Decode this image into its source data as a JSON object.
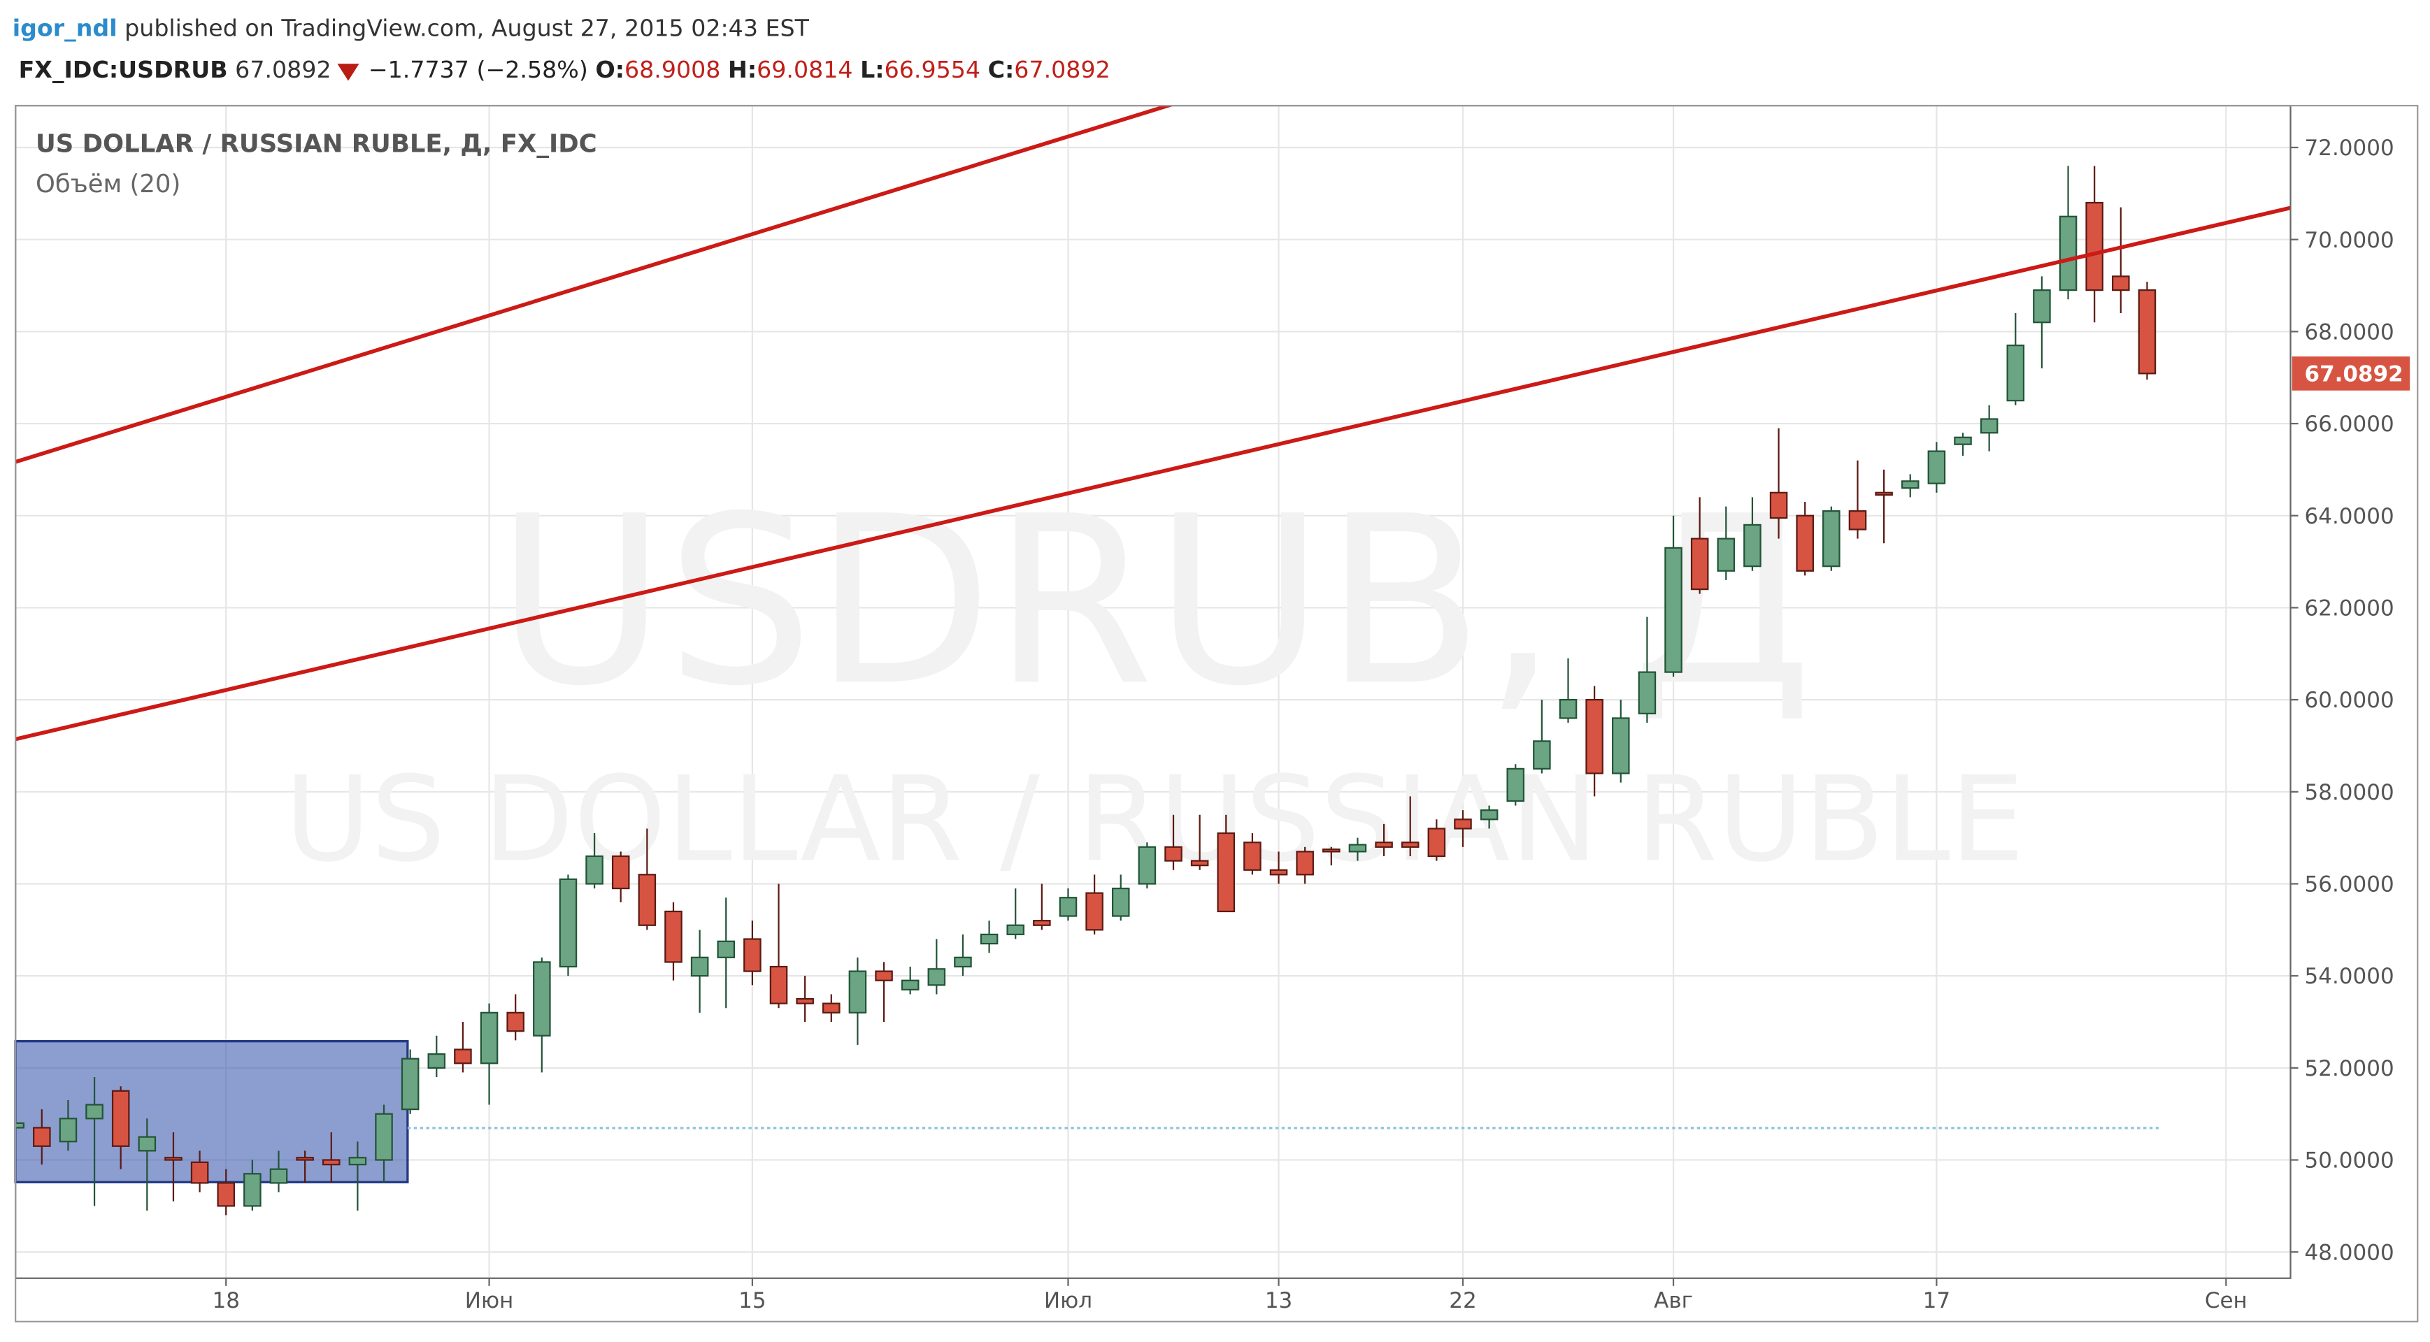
{
  "header": {
    "author": "igor_ndl",
    "published": "published on TradingView.com, August 27, 2015 02:43 EST",
    "symbol": "FX_IDC:USDRUB",
    "last": "67.0892",
    "change": "−1.7737 (−2.58%)",
    "ohlc": [
      {
        "label": "O:",
        "value": "68.9008"
      },
      {
        "label": "H:",
        "value": "69.0814"
      },
      {
        "label": "L:",
        "value": "66.9554"
      },
      {
        "label": "C:",
        "value": "67.0892"
      }
    ]
  },
  "chart_data": {
    "type": "candlestick",
    "title": "US DOLLAR / RUSSIAN RUBLE, Д, FX_IDC",
    "subtitle": "Объём (20)",
    "watermark": [
      "USDRUB, Д",
      "US DOLLAR / RUSSIAN RUBLE"
    ],
    "up_color": "#6ba583",
    "down_color": "#d75442",
    "grid": true,
    "xlim": [
      0,
      86.45
    ],
    "ylim": [
      47.43,
      72.91
    ],
    "xticks": [
      {
        "value": 8,
        "label": "18"
      },
      {
        "value": 18,
        "label": "Июн"
      },
      {
        "value": 28,
        "label": "15"
      },
      {
        "value": 40,
        "label": "Июл"
      },
      {
        "value": 48,
        "label": "13"
      },
      {
        "value": 55,
        "label": "22"
      },
      {
        "value": 63,
        "label": "Авг"
      },
      {
        "value": 73,
        "label": "17"
      },
      {
        "value": 84,
        "label": "Сен"
      }
    ],
    "yticks": [
      {
        "value": 48,
        "label": "48.0000"
      },
      {
        "value": 50,
        "label": "50.0000"
      },
      {
        "value": 52,
        "label": "52.0000"
      },
      {
        "value": 54,
        "label": "54.0000"
      },
      {
        "value": 56,
        "label": "56.0000"
      },
      {
        "value": 58,
        "label": "58.0000"
      },
      {
        "value": 60,
        "label": "60.0000"
      },
      {
        "value": 62,
        "label": "62.0000"
      },
      {
        "value": 64,
        "label": "64.0000"
      },
      {
        "value": 66,
        "label": "66.0000"
      },
      {
        "value": 68,
        "label": "68.0000"
      },
      {
        "value": 70,
        "label": "70.0000"
      },
      {
        "value": 72,
        "label": "72.0000"
      }
    ],
    "open": [
      50.7,
      50.7,
      50.4,
      50.9,
      51.5,
      50.2,
      50.05,
      49.95,
      49.5,
      49.0,
      49.5,
      50.05,
      50.0,
      49.9,
      50.0,
      51.1,
      52.0,
      52.4,
      52.1,
      53.2,
      52.7,
      54.2,
      56.0,
      56.6,
      56.2,
      55.4,
      54.0,
      54.4,
      54.8,
      54.2,
      53.5,
      53.4,
      53.2,
      54.1,
      53.7,
      53.8,
      54.2,
      54.7,
      54.9,
      55.2,
      55.3,
      55.8,
      55.3,
      56.0,
      56.8,
      56.5,
      57.1,
      56.9,
      56.3,
      56.7,
      56.75,
      56.7,
      56.9,
      56.9,
      57.2,
      57.4,
      57.4,
      57.8,
      58.5,
      59.6,
      60.0,
      58.4,
      59.7,
      60.6,
      63.5,
      62.8,
      62.9,
      64.5,
      64.0,
      62.9,
      64.1,
      64.5,
      64.6,
      64.7,
      65.55,
      65.8,
      66.5,
      68.2,
      68.9,
      70.8,
      69.2,
      68.9008
    ],
    "high": [
      51.0,
      51.1,
      51.3,
      51.8,
      51.6,
      50.9,
      50.6,
      50.2,
      49.8,
      50.0,
      50.2,
      50.2,
      50.6,
      50.4,
      51.2,
      52.4,
      52.7,
      53.0,
      53.4,
      53.6,
      54.4,
      56.2,
      57.1,
      56.7,
      57.2,
      55.6,
      55.0,
      55.7,
      55.2,
      56.0,
      54.0,
      53.6,
      54.4,
      54.3,
      54.2,
      54.8,
      54.9,
      55.2,
      55.9,
      56.0,
      55.9,
      56.2,
      56.2,
      56.9,
      57.5,
      57.5,
      57.5,
      57.1,
      56.7,
      56.8,
      56.8,
      57.0,
      57.3,
      57.9,
      57.4,
      57.6,
      57.7,
      58.6,
      60.0,
      60.9,
      60.3,
      60.0,
      61.8,
      64.0,
      64.4,
      64.2,
      64.4,
      65.9,
      64.3,
      64.2,
      65.2,
      65.0,
      64.9,
      65.6,
      65.8,
      66.4,
      68.4,
      69.2,
      71.6,
      71.6,
      70.7,
      69.0814
    ],
    "low": [
      50.4,
      49.9,
      50.2,
      49.0,
      49.8,
      48.9,
      49.1,
      49.3,
      48.8,
      48.9,
      49.3,
      49.5,
      49.5,
      48.9,
      49.5,
      51.0,
      51.8,
      51.9,
      51.2,
      52.6,
      51.9,
      54.0,
      55.9,
      55.6,
      55.0,
      53.9,
      53.2,
      53.3,
      53.8,
      53.3,
      53.0,
      53.0,
      52.5,
      53.0,
      53.6,
      53.6,
      54.0,
      54.5,
      54.8,
      55.0,
      55.2,
      54.9,
      55.2,
      55.9,
      56.3,
      56.3,
      55.4,
      56.2,
      56.0,
      56.0,
      56.4,
      56.5,
      56.6,
      56.6,
      56.5,
      56.8,
      57.2,
      57.7,
      58.4,
      59.5,
      57.9,
      58.2,
      59.5,
      60.5,
      62.3,
      62.6,
      62.8,
      63.5,
      62.7,
      62.8,
      63.5,
      63.4,
      64.4,
      64.5,
      65.3,
      65.4,
      66.4,
      67.2,
      68.7,
      68.2,
      68.4,
      66.9554
    ],
    "close": [
      50.8,
      50.3,
      50.9,
      51.2,
      50.3,
      50.5,
      50.0,
      49.5,
      49.0,
      49.7,
      49.8,
      50.0,
      49.9,
      50.05,
      51.0,
      52.2,
      52.3,
      52.1,
      53.2,
      52.8,
      54.3,
      56.1,
      56.6,
      55.9,
      55.1,
      54.3,
      54.4,
      54.75,
      54.1,
      53.4,
      53.4,
      53.2,
      54.1,
      53.9,
      53.9,
      54.15,
      54.4,
      54.9,
      55.1,
      55.1,
      55.7,
      55.0,
      55.9,
      56.8,
      56.5,
      56.4,
      55.4,
      56.3,
      56.2,
      56.2,
      56.7,
      56.85,
      56.8,
      56.8,
      56.6,
      57.2,
      57.6,
      58.5,
      59.1,
      60.0,
      58.4,
      59.6,
      60.6,
      63.3,
      62.4,
      63.5,
      63.8,
      63.95,
      62.8,
      64.1,
      63.7,
      64.45,
      64.75,
      65.4,
      65.7,
      66.1,
      67.7,
      68.9,
      70.5,
      68.9,
      68.9,
      67.0892
    ]
  }
}
